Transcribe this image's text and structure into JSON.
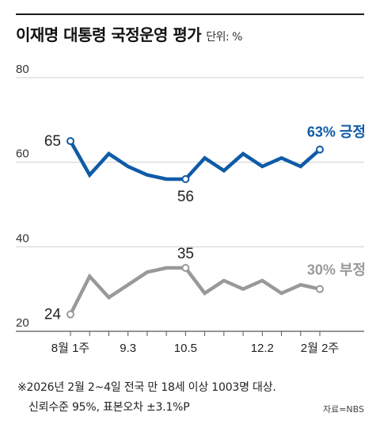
{
  "title": "이재명 대통령 국정운영 평가",
  "unit_label": "단위: %",
  "chart_data": {
    "type": "line",
    "x_labels": [
      "8월 1주",
      "9.3",
      "10.5",
      "12.2",
      "2월 2주"
    ],
    "x_label_indices": [
      0,
      3,
      6,
      10,
      13
    ],
    "ylim": [
      20,
      80
    ],
    "y_ticks": [
      80,
      60,
      40,
      20
    ],
    "grid": true,
    "series": [
      {
        "name": "긍정",
        "end_label": "63% 긍정",
        "color": "#0f5ba7",
        "values": [
          65,
          57,
          62,
          59,
          57,
          56,
          56,
          61,
          58,
          62,
          59,
          61,
          59,
          63
        ],
        "labeled_points": [
          {
            "index": 0,
            "text": "65"
          },
          {
            "index": 6,
            "text": "56"
          }
        ]
      },
      {
        "name": "부정",
        "end_label": "30% 부정",
        "color": "#999999",
        "values": [
          24,
          33,
          28,
          31,
          34,
          35,
          35,
          29,
          32,
          30,
          32,
          29,
          31,
          30
        ],
        "labeled_points": [
          {
            "index": 0,
            "text": "24"
          },
          {
            "index": 6,
            "text": "35"
          }
        ]
      }
    ]
  },
  "note_line1": "※2026년 2월 2~4일 전국 만 18세 이상 1003명 대상.",
  "note_line2": "신뢰수준 95%, 표본오차 ±3.1%P",
  "source": "자료=NBS"
}
